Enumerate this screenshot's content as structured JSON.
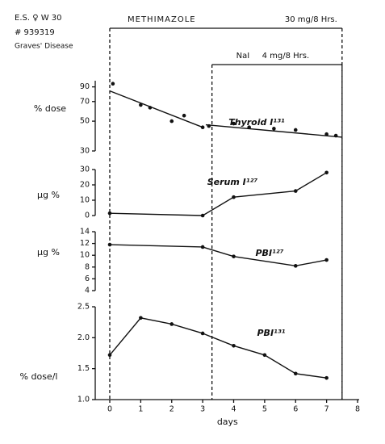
{
  "header": {
    "patient": "E.S. ♀ W 30",
    "number": "# 939319",
    "diagnosis": "Graves' Disease"
  },
  "treatments": [
    {
      "drug": "METHIMAZOLE",
      "dose": "30 mg/8 Hrs.",
      "start": 0,
      "end": 7.5
    },
    {
      "drug": "NaI",
      "dose": "4 mg/8 Hrs.",
      "start": 3.3,
      "end": 7.5
    }
  ],
  "chart_data": [
    {
      "type": "line",
      "ylabel": "% dose",
      "log": true,
      "ylim": [
        30,
        100
      ],
      "yticks": [
        30,
        50,
        70,
        90
      ],
      "series": [
        {
          "name": "Thyroid I¹³¹",
          "color": "#111111",
          "mode": "markers",
          "x": [
            0.1,
            1,
            1.3,
            2,
            2.4,
            3,
            3.2,
            4,
            4.5,
            5.3,
            6,
            7,
            7.3
          ],
          "values": [
            95,
            66,
            63,
            50,
            55,
            45,
            46,
            48,
            45,
            44,
            43,
            40,
            39
          ]
        },
        {
          "color": "#111111",
          "mode": "lines",
          "x": [
            0,
            3,
            3,
            3.1,
            7.5
          ],
          "values": [
            84,
            45,
            null,
            47,
            38
          ]
        }
      ]
    },
    {
      "type": "line",
      "ylabel": "µg %",
      "ylim": [
        0,
        30
      ],
      "yticks": [
        0,
        10,
        20,
        30
      ],
      "series": [
        {
          "name": "Serum I¹²⁷",
          "color": "#111111",
          "mode": "lines+markers",
          "x": [
            0,
            3,
            4,
            6,
            7
          ],
          "values": [
            1.5,
            0,
            12,
            16,
            28
          ]
        }
      ]
    },
    {
      "type": "line",
      "ylabel": "µg %",
      "ylim": [
        4,
        14
      ],
      "yticks": [
        4,
        6,
        8,
        10,
        12,
        14
      ],
      "series": [
        {
          "name": "PBI¹²⁷",
          "color": "#111111",
          "mode": "lines+markers",
          "x": [
            0,
            3,
            4,
            6,
            7
          ],
          "values": [
            11.8,
            11.4,
            9.8,
            8.2,
            9.2
          ]
        }
      ]
    },
    {
      "type": "line",
      "ylabel": "% dose/l",
      "ylim": [
        1,
        2.5
      ],
      "yticks": [
        {
          "value": 1,
          "label": "1.0"
        },
        1.5,
        {
          "value": 2,
          "label": "2.0"
        },
        2.5
      ],
      "xlabel": "days",
      "xlim": [
        0,
        8
      ],
      "xticks": [
        0,
        1,
        2,
        3,
        4,
        5,
        6,
        7,
        8
      ],
      "series": [
        {
          "name": "PBI¹³¹",
          "color": "#111111",
          "mode": "lines+markers",
          "x": [
            0,
            1,
            2,
            3,
            4,
            5,
            6,
            7
          ],
          "values": [
            1.72,
            2.32,
            2.22,
            2.07,
            1.87,
            1.72,
            1.42,
            1.35
          ]
        }
      ]
    }
  ]
}
